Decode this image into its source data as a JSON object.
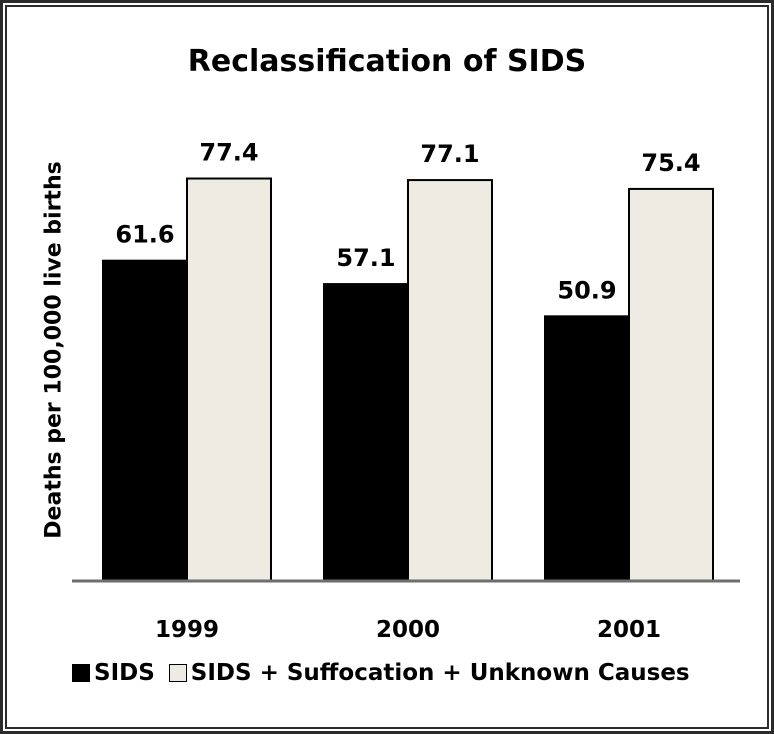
{
  "chart_data": {
    "type": "bar",
    "title": "Reclassification of SIDS",
    "ylabel": "Deaths per 100,000 live births",
    "categories": [
      "1999",
      "2000",
      "2001"
    ],
    "series": [
      {
        "name": "SIDS",
        "values": [
          61.6,
          57.1,
          50.9
        ],
        "color": "#000000"
      },
      {
        "name": "SIDS + Suffocation + Unknown Causes",
        "values": [
          77.4,
          77.1,
          75.4
        ],
        "color": "#eeebe3"
      }
    ],
    "value_labels": [
      [
        "61.6",
        "57.1",
        "50.9"
      ],
      [
        "77.4",
        "77.1",
        "75.4"
      ]
    ],
    "ylim": [
      0,
      80
    ],
    "grid": false,
    "legend_position": "bottom"
  }
}
